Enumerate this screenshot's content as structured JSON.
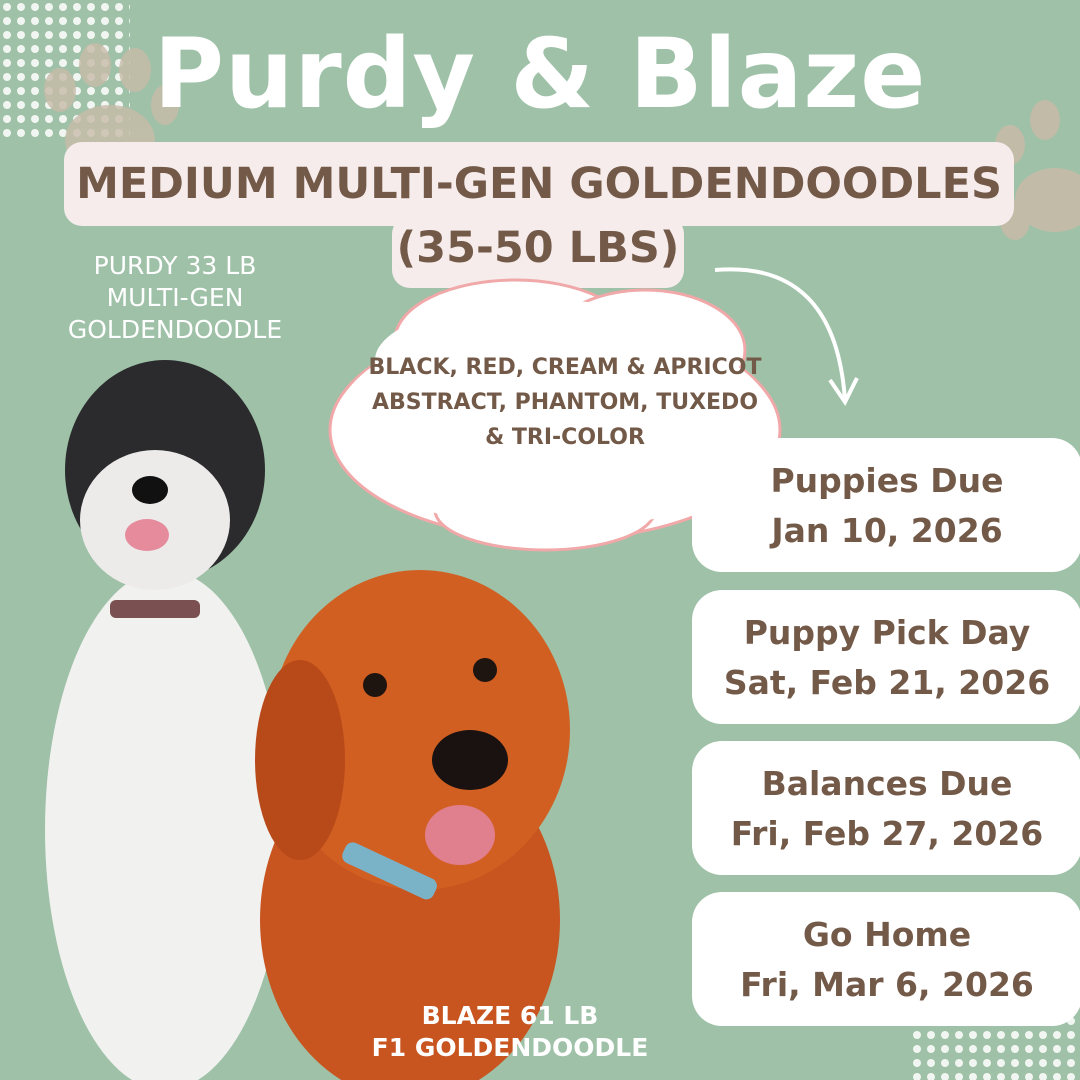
{
  "title": "Purdy & Blaze",
  "subtitle_line1": "MEDIUM MULTI-GEN GOLDENDOODLES",
  "subtitle_line2": "(35-50 LBS)",
  "purdy": {
    "line1": "PURDY  33 LB",
    "line2": "MULTI-GEN",
    "line3": "GOLDENDOODLE"
  },
  "blaze": {
    "line1": "BLAZE 61 LB",
    "line2": "F1 GOLDENDOODLE"
  },
  "colors": {
    "line1": "BLACK, RED, CREAM & APRICOT",
    "line2": "ABSTRACT, PHANTOM, TUXEDO",
    "line3": "& TRI-COLOR"
  },
  "dates": [
    {
      "label": "Puppies Due",
      "date": "Jan 10, 2026"
    },
    {
      "label": "Puppy Pick Day",
      "date": "Sat, Feb 21, 2026"
    },
    {
      "label": "Balances Due",
      "date": "Fri, Feb 27, 2026"
    },
    {
      "label": "Go Home",
      "date": "Fri,  Mar 6, 2026"
    }
  ],
  "palette": {
    "background": "#9ec1a8",
    "text_brown": "#735a48",
    "banner": "#f7ecec",
    "cloud_outline": "#f0a8a8"
  },
  "icons": [
    "paw-print-icon",
    "curved-arrow-icon",
    "dot-pattern"
  ]
}
